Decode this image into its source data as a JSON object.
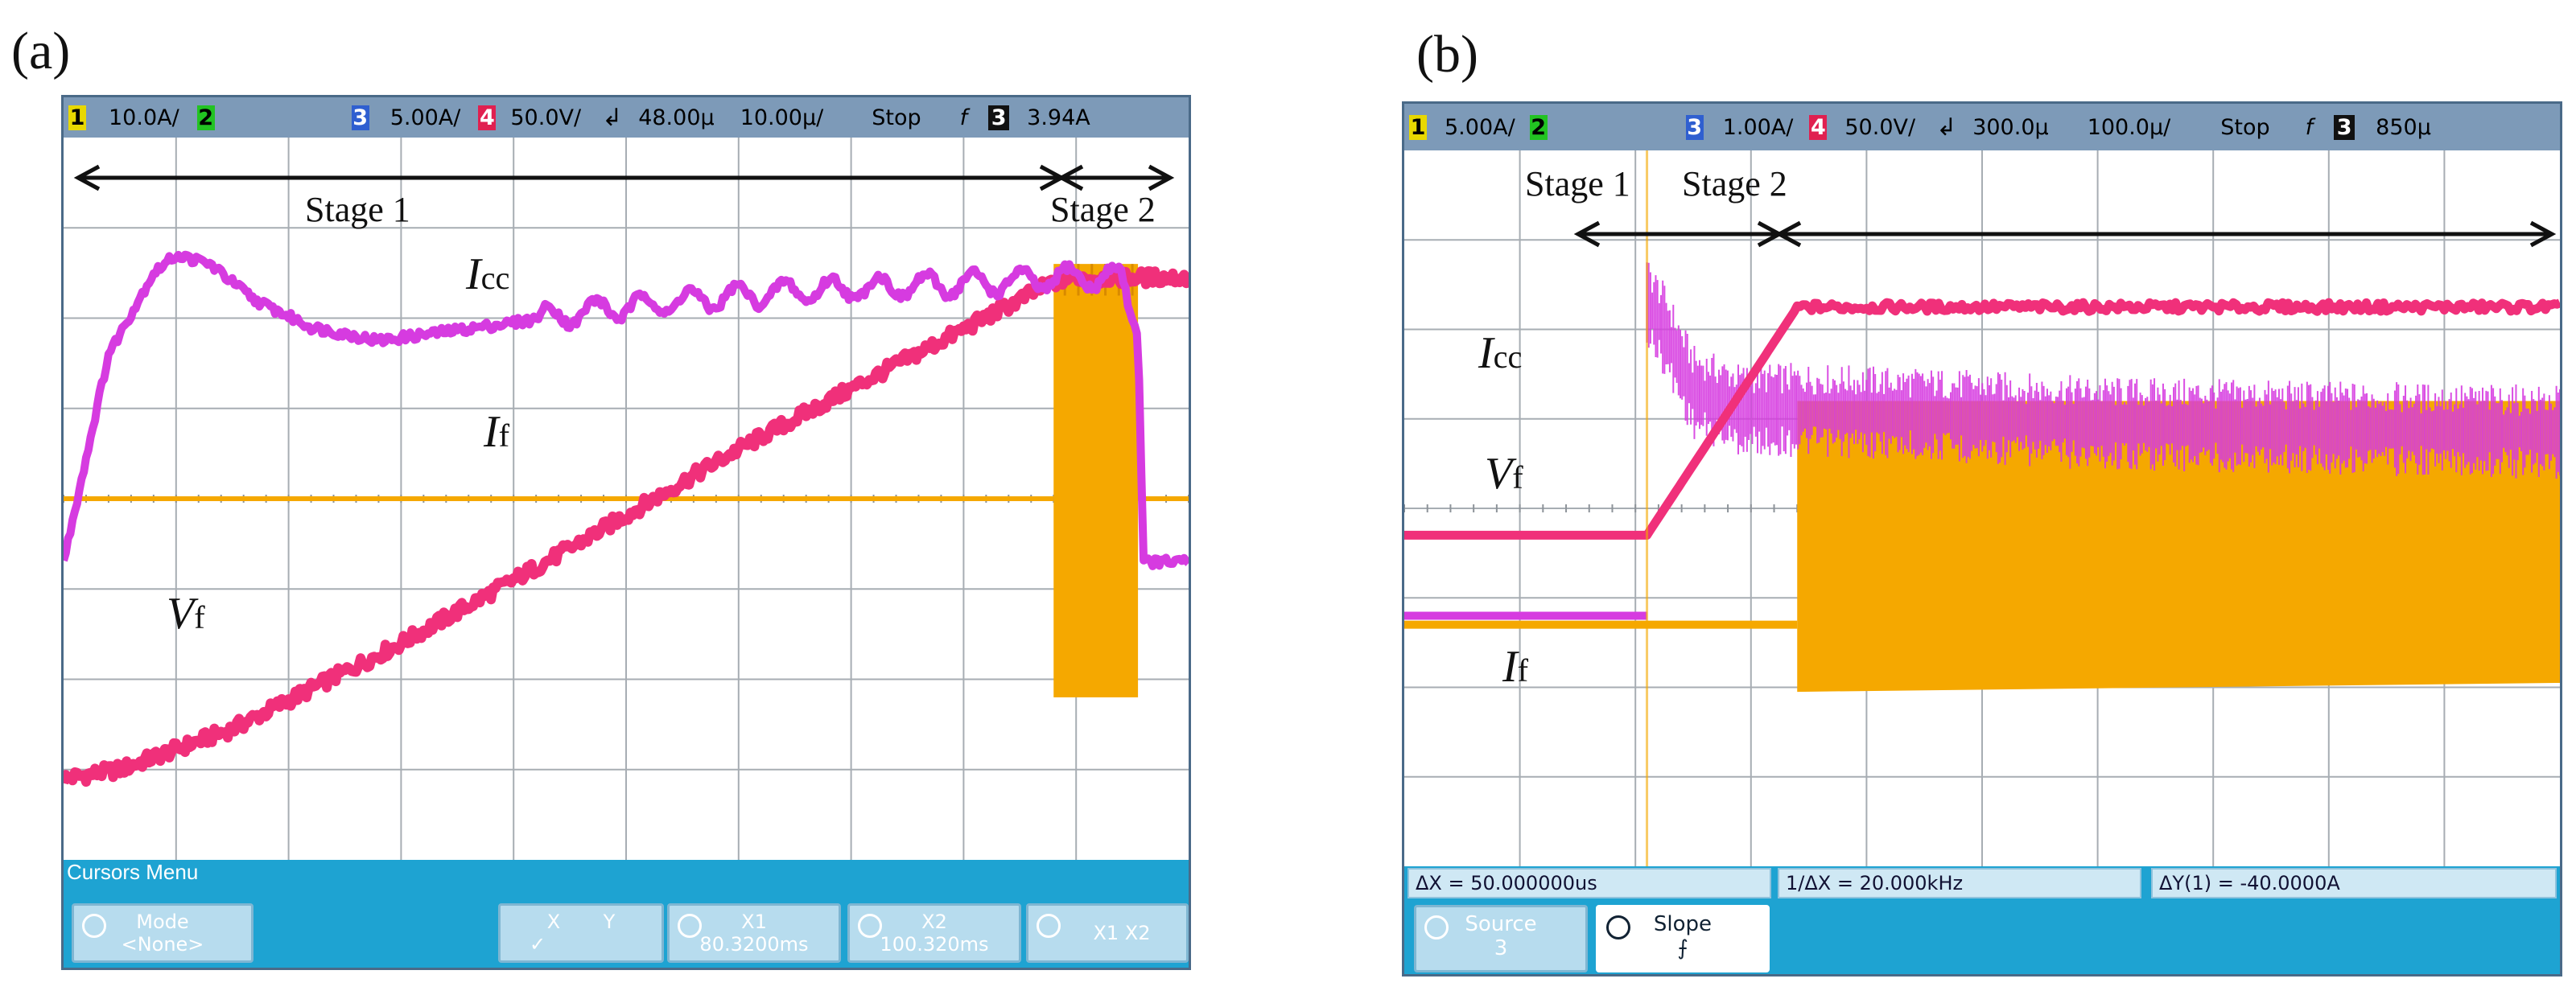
{
  "chart_data": [
    {
      "type": "line",
      "panel": "(a)",
      "topbar": {
        "ch1": "10.0A/",
        "ch2": "2",
        "ch3": "5.00A/",
        "ch4": "50.0V/",
        "delay": "48.00µ",
        "timebase": "10.00µ/",
        "mode": "Stop",
        "trig_ch": "3",
        "trig_level": "3.94A"
      },
      "stages": [
        {
          "name": "Stage 1",
          "x_start": 0,
          "x_end": 8.9
        },
        {
          "name": "Stage 2",
          "x_start": 8.9,
          "x_end": 10
        }
      ],
      "series": [
        {
          "name": "I_cc",
          "color": "#d63be0",
          "x": [
            0,
            0.4,
            0.8,
            1.0,
            1.3,
            1.7,
            2.2,
            2.8,
            3.4,
            4.0,
            4.8,
            5.6,
            6.5,
            7.4,
            8.4,
            8.9,
            9.4,
            9.55,
            9.6,
            10.0
          ],
          "y": [
            -0.7,
            1.6,
            2.5,
            2.7,
            2.6,
            2.2,
            1.9,
            1.75,
            1.85,
            1.95,
            2.1,
            2.2,
            2.3,
            2.35,
            2.4,
            2.45,
            2.45,
            1.8,
            -0.7,
            -0.7
          ]
        },
        {
          "name": "V_f",
          "color": "#f0307a",
          "x": [
            0,
            0.5,
            1.5,
            3.0,
            4.5,
            6.0,
            7.5,
            8.8,
            9.0,
            10.0
          ],
          "y": [
            -3.1,
            -3.0,
            -2.55,
            -1.6,
            -0.55,
            0.55,
            1.55,
            2.4,
            2.45,
            2.45
          ]
        },
        {
          "name": "I_f",
          "color": "#f5a800",
          "x": [
            0,
            8.8,
            8.8,
            9.55,
            9.55,
            10.0
          ],
          "y": [
            0.0,
            0.0,
            2.6,
            -2.2,
            0.0,
            0.0
          ]
        }
      ],
      "labels": {
        "i_cc": "I",
        "i_cc_sub": "cc",
        "i_f": "I",
        "i_f_sub": "f",
        "v_f": "V",
        "v_f_sub": "f",
        "stage1": "Stage 1",
        "stage2": "Stage 2"
      },
      "cursor_menu": {
        "title": "Cursors Menu",
        "mode_label": "Mode",
        "mode_value": "<None>",
        "xy_x": "X",
        "xy_y": "Y",
        "xy_check": "✓",
        "x1_label": "X1",
        "x1_value": "80.3200ms",
        "x2_label": "X2",
        "x2_value": "100.320ms",
        "x1x2_label": "X1 X2"
      }
    },
    {
      "type": "line",
      "panel": "(b)",
      "topbar": {
        "ch1": "5.00A/",
        "ch2": "2",
        "ch3": "1.00A/",
        "ch4": "50.0V/",
        "delay": "300.0µ",
        "timebase": "100.0µ/",
        "mode": "Stop",
        "trig_ch": "3",
        "trig_level": "850µ"
      },
      "stages": [
        {
          "name": "Stage 1",
          "x_start": 2.1,
          "x_end": 3.4
        },
        {
          "name": "Stage 2",
          "x_start": 3.4,
          "x_end": 10
        }
      ],
      "series": [
        {
          "name": "I_cc",
          "color": "#d63be0",
          "x": [
            0,
            2.1,
            2.1,
            2.25,
            2.5,
            2.9,
            3.4,
            4.5,
            6.0,
            8.0,
            10.0
          ],
          "y": [
            -1.2,
            -1.2,
            2.3,
            2.0,
            1.3,
            1.1,
            1.1,
            1.05,
            0.95,
            0.9,
            0.85
          ],
          "band_halfwidth": 0.35
        },
        {
          "name": "V_f",
          "color": "#f0307a",
          "x": [
            0,
            2.1,
            3.4,
            10.0
          ],
          "y": [
            -0.3,
            -0.3,
            2.25,
            2.25
          ]
        },
        {
          "name": "I_f",
          "color": "#f5a800",
          "x": [
            0,
            3.4,
            3.4,
            10.0,
            10.0,
            3.4
          ],
          "y": [
            -1.3,
            -1.3,
            1.2,
            1.2,
            -1.95,
            -2.05
          ]
        }
      ],
      "labels": {
        "i_cc": "I",
        "i_cc_sub": "cc",
        "i_f": "I",
        "i_f_sub": "f",
        "v_f": "V",
        "v_f_sub": "f",
        "stage1": "Stage 1",
        "stage2": "Stage 2"
      },
      "readouts": {
        "dx": "ΔX = 50.000000us",
        "inv_dx": "1/ΔX = 20.000kHz",
        "dy": "ΔY(1) = -40.0000A"
      },
      "softkeys": {
        "source_label": "Source",
        "source_value": "3",
        "slope_label": "Slope",
        "slope_value": "⨍"
      }
    }
  ],
  "panel_a_title": "(a)",
  "panel_b_title": "(b)",
  "colors": {
    "scope_bar": "#7d9ab8",
    "menu": "#1ea3d2",
    "grid": "#9aa0a6",
    "orange": "#f5a800",
    "magenta": "#d63be0",
    "pink": "#f0307a"
  },
  "icons": {
    "trigger": "trigger-edge-icon",
    "slope": "slope-icon",
    "knob": "knob-icon"
  }
}
